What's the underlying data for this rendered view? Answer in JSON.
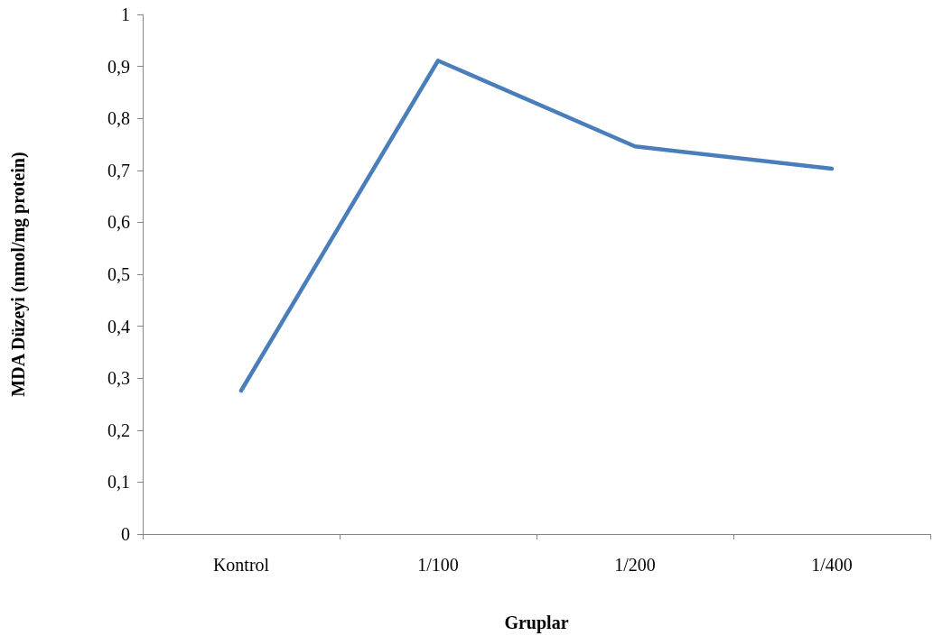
{
  "chart_data": {
    "type": "line",
    "xlabel": "Gruplar",
    "ylabel": "MDA Düzeyi (nmol/mg protein)",
    "categories": [
      "Kontrol",
      "1/100",
      "1/200",
      "1/400"
    ],
    "series": [
      {
        "color": "#4a7ebb",
        "values": [
          0.276,
          0.911,
          0.746,
          0.703
        ]
      }
    ],
    "ylim": [
      0,
      1
    ],
    "yticks": [
      0,
      {
        "value": 0.1,
        "label": "0,1"
      },
      {
        "value": 0.2,
        "label": "0,2"
      },
      {
        "value": 0.3,
        "label": "0,3"
      },
      {
        "value": 0.4,
        "label": "0,4"
      },
      {
        "value": 0.5,
        "label": "0,5"
      },
      {
        "value": 0.6,
        "label": "0,6"
      },
      {
        "value": 0.7,
        "label": "0,7"
      },
      {
        "value": 0.8,
        "label": "0,8"
      },
      {
        "value": 0.9,
        "label": "0,9"
      },
      1
    ],
    "grid": false,
    "marker": "none",
    "line_style": "solid"
  }
}
